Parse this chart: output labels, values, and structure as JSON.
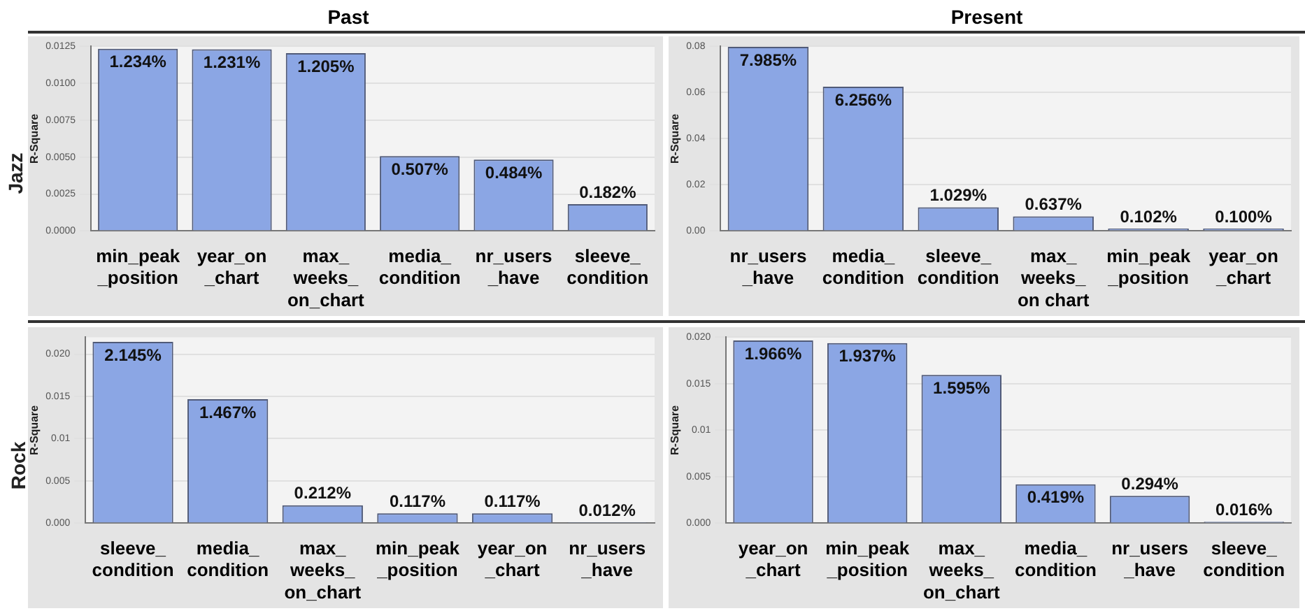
{
  "chart_data": [
    {
      "type": "bar",
      "title": "Past",
      "ylabel": "R-Square",
      "annotations": [
        "Jazz"
      ],
      "categories": [
        "min_peak _position",
        "year_on _chart",
        "max_ weeks_ on_chart",
        "media_ condition",
        "nr_users _have",
        "sleeve_ condition"
      ],
      "values": [
        0.01234,
        0.01231,
        0.01205,
        0.00507,
        0.00484,
        0.00182
      ],
      "value_labels": [
        "1.234%",
        "1.231%",
        "1.205%",
        "0.507%",
        "0.484%",
        "0.182%"
      ],
      "color": "#8ba6e4",
      "ylim": [
        0,
        0.0125
      ],
      "yticks": [
        {
          "value": 0,
          "label": "0.0000"
        },
        {
          "value": 0.0025,
          "label": "0.0025"
        },
        {
          "value": 0.005,
          "label": "0.0050"
        },
        {
          "value": 0.0075,
          "label": "0.0075"
        },
        {
          "value": 0.01,
          "label": "0.0100"
        },
        {
          "value": 0.0125,
          "label": "0.0125"
        }
      ],
      "grid": "y",
      "legend": false
    },
    {
      "type": "bar",
      "title": "Present",
      "ylabel": "R-Square",
      "categories": [
        "nr_users _have",
        "media_ condition",
        "sleeve_ condition",
        "max_\nweeks_\non chart",
        "min_peak _position",
        "year_on _chart"
      ],
      "values": [
        0.07985,
        0.06256,
        0.01029,
        0.00637,
        0.00102,
        0.001
      ],
      "value_labels": [
        "7.985%",
        "6.256%",
        "1.029%",
        "0.637%",
        "0.102%",
        "0.100%"
      ],
      "color": "#8ba6e4",
      "ylim": [
        0,
        0.08
      ],
      "yticks": [
        {
          "value": 0,
          "label": "0.00"
        },
        0.02,
        0.04,
        0.06,
        0.08
      ],
      "grid": "y",
      "legend": false
    },
    {
      "type": "bar",
      "ylabel": "R-Square",
      "annotations": [
        "Rock"
      ],
      "categories": [
        "sleeve_ condition",
        "media_ condition",
        "max_ weeks_ on_chart",
        "min_peak _position",
        "year_on _chart",
        "nr_users _have"
      ],
      "values": [
        0.02145,
        0.01467,
        0.00212,
        0.00117,
        0.00117,
        0.00012
      ],
      "value_labels": [
        "2.145%",
        "1.467%",
        "0.212%",
        "0.117%",
        "0.117%",
        "0.012%"
      ],
      "color": "#8ba6e4",
      "ylim": [
        0,
        0.022
      ],
      "yticks": [
        {
          "value": 0,
          "label": "0.000"
        },
        0.005,
        0.01,
        0.015,
        {
          "value": 0.02,
          "label": "0.020"
        }
      ],
      "grid": "y",
      "legend": false
    },
    {
      "type": "bar",
      "ylabel": "R-Square",
      "categories": [
        "year_on _chart",
        "min_peak _position",
        "max_ weeks_ on_chart",
        "media_ condition",
        "nr_users _have",
        "sleeve_ condition"
      ],
      "values": [
        0.01966,
        0.01937,
        0.01595,
        0.00419,
        0.00294,
        0.00016
      ],
      "value_labels": [
        "1.966%",
        "1.937%",
        "1.595%",
        "0.419%",
        "0.294%",
        "0.016%"
      ],
      "color": "#8ba6e4",
      "ylim": [
        0,
        0.02
      ],
      "yticks": [
        {
          "value": 0,
          "label": "0.000"
        },
        0.005,
        0.01,
        0.015,
        {
          "value": 0.02,
          "label": "0.020"
        }
      ],
      "grid": "y",
      "legend": false
    }
  ]
}
